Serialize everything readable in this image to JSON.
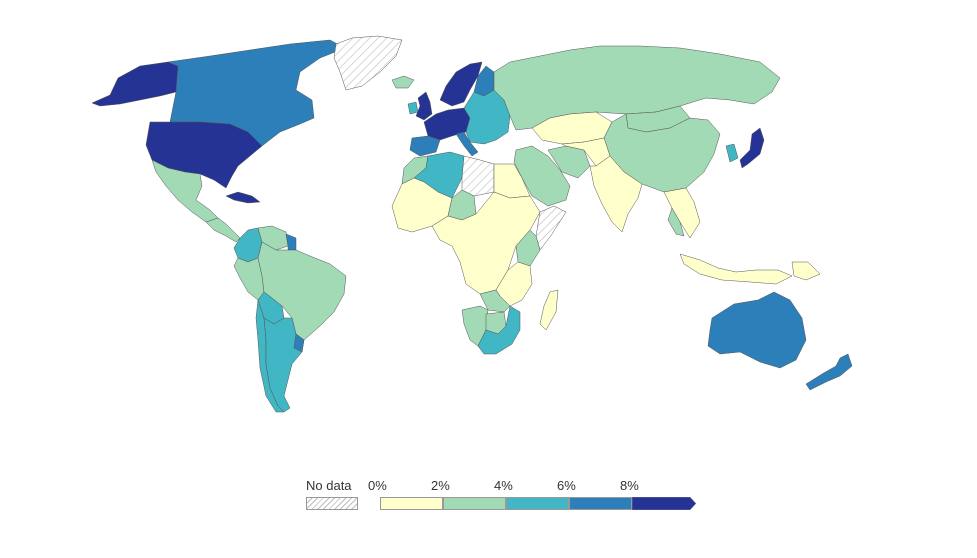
{
  "legend": {
    "no_data_label": "No data",
    "no_data_pattern_color": "#bdbdbd",
    "ticks": [
      "0%",
      "2%",
      "4%",
      "6%",
      "8%"
    ],
    "bins": [
      {
        "range": "0%-2%",
        "color": "#ffffcc"
      },
      {
        "range": "2%-4%",
        "color": "#a1dab4"
      },
      {
        "range": "4%-6%",
        "color": "#41b6c4"
      },
      {
        "range": "6%-8%",
        "color": "#2c7fb8"
      },
      {
        "range": "8%+",
        "color": "#253494"
      }
    ]
  },
  "map": {
    "regions": [
      {
        "name": "Alaska",
        "bin": 4
      },
      {
        "name": "Canada",
        "bin": 3
      },
      {
        "name": "United States",
        "bin": 4
      },
      {
        "name": "Greenland",
        "bin": -1
      },
      {
        "name": "Mexico",
        "bin": 1
      },
      {
        "name": "Central America",
        "bin": 1
      },
      {
        "name": "Cuba",
        "bin": 4
      },
      {
        "name": "Colombia",
        "bin": 2
      },
      {
        "name": "Venezuela",
        "bin": 1
      },
      {
        "name": "Guyana",
        "bin": 3
      },
      {
        "name": "Peru",
        "bin": 1
      },
      {
        "name": "Brazil",
        "bin": 1
      },
      {
        "name": "Bolivia",
        "bin": 2
      },
      {
        "name": "Chile",
        "bin": 2
      },
      {
        "name": "Argentina",
        "bin": 2
      },
      {
        "name": "Uruguay",
        "bin": 3
      },
      {
        "name": "Iceland",
        "bin": 1
      },
      {
        "name": "United Kingdom",
        "bin": 4
      },
      {
        "name": "Ireland",
        "bin": 2
      },
      {
        "name": "Scandinavia",
        "bin": 4
      },
      {
        "name": "Finland",
        "bin": 3
      },
      {
        "name": "Western Europe",
        "bin": 4
      },
      {
        "name": "Spain",
        "bin": 3
      },
      {
        "name": "Italy",
        "bin": 3
      },
      {
        "name": "Eastern Europe",
        "bin": 2
      },
      {
        "name": "Russia",
        "bin": 1
      },
      {
        "name": "Kazakhstan",
        "bin": 0
      },
      {
        "name": "Mongolia",
        "bin": 1
      },
      {
        "name": "China",
        "bin": 1
      },
      {
        "name": "Korea",
        "bin": 2
      },
      {
        "name": "Japan",
        "bin": 4
      },
      {
        "name": "Middle East",
        "bin": 1
      },
      {
        "name": "Iran",
        "bin": 1
      },
      {
        "name": "Central Asia",
        "bin": 0
      },
      {
        "name": "India",
        "bin": 0
      },
      {
        "name": "Southeast Asia",
        "bin": 0
      },
      {
        "name": "Thailand",
        "bin": 1
      },
      {
        "name": "Indonesia",
        "bin": 0
      },
      {
        "name": "Papua New Guinea",
        "bin": 0
      },
      {
        "name": "Australia",
        "bin": 3
      },
      {
        "name": "New Zealand",
        "bin": 3
      },
      {
        "name": "Morocco",
        "bin": 1
      },
      {
        "name": "Algeria",
        "bin": 2
      },
      {
        "name": "Libya",
        "bin": -1
      },
      {
        "name": "Egypt",
        "bin": 0
      },
      {
        "name": "Sahel",
        "bin": 0
      },
      {
        "name": "Niger",
        "bin": 1
      },
      {
        "name": "Central Africa",
        "bin": 0
      },
      {
        "name": "East Africa",
        "bin": 0
      },
      {
        "name": "Kenya",
        "bin": 1
      },
      {
        "name": "Somalia",
        "bin": -1
      },
      {
        "name": "Zambia",
        "bin": 1
      },
      {
        "name": "Namibia",
        "bin": 1
      },
      {
        "name": "Botswana",
        "bin": 1
      },
      {
        "name": "South Africa",
        "bin": 2
      },
      {
        "name": "Madagascar",
        "bin": 0
      }
    ]
  }
}
